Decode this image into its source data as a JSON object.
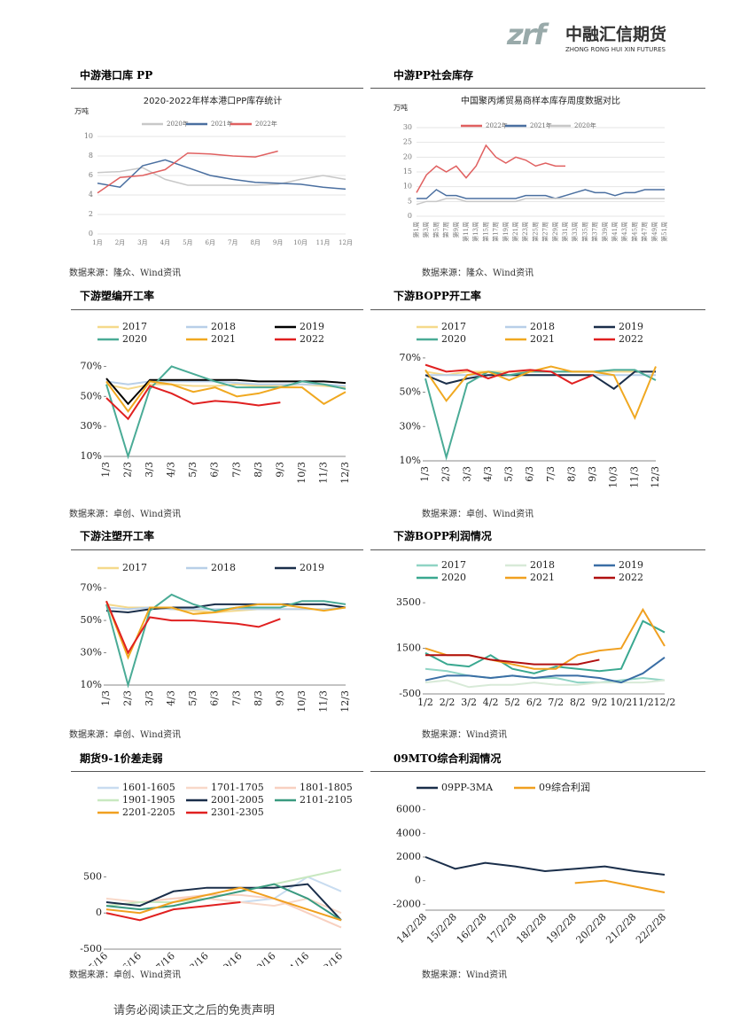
{
  "header": {
    "logo_mark": "zrf",
    "company": "中融汇信期货",
    "company_en": "ZHONG RONG HUI XIN FUTURES"
  },
  "footer": "请务必阅读正文之后的免责声明",
  "chart_data": [
    {
      "type": "line",
      "section": "中游港口库 PP",
      "source": "数据来源：隆众、Wind资讯",
      "title": "2020-2022年样本港口PP库存统计",
      "unit": "万吨",
      "grid": true,
      "categories": [
        "1月",
        "2月",
        "3月",
        "4月",
        "5月",
        "6月",
        "7月",
        "8月",
        "9月",
        "10月",
        "11月",
        "12月"
      ],
      "series": [
        {
          "name": "2020年",
          "color": "#c8c8c8",
          "values": [
            6.3,
            6.4,
            6.8,
            5.6,
            5.0,
            5.0,
            5.0,
            5.0,
            5.1,
            5.6,
            6.0,
            5.6
          ]
        },
        {
          "name": "2021年",
          "color": "#4a6fa0",
          "values": [
            5.2,
            4.8,
            7.0,
            7.6,
            6.8,
            6.0,
            5.6,
            5.3,
            5.2,
            5.1,
            4.8,
            4.6
          ]
        },
        {
          "name": "2022年",
          "color": "#e06060",
          "values": [
            4.2,
            5.8,
            6.0,
            6.6,
            8.3,
            8.2,
            8.0,
            7.9,
            8.5,
            null,
            null,
            null
          ]
        }
      ],
      "ylim": [
        0,
        10
      ],
      "yticks": [
        0,
        2,
        4,
        6,
        8,
        10
      ]
    },
    {
      "type": "line",
      "section": "中游PP社会库存",
      "source": "数据来源：隆众、Wind资讯",
      "title": "中国聚丙烯贸易商样本库存周度数据对比",
      "unit": "万吨",
      "grid": true,
      "categories": [
        "第1周",
        "第3周",
        "第5周",
        "第7周",
        "第9周",
        "第11周",
        "第13周",
        "第15周",
        "第17周",
        "第19周",
        "第21周",
        "第23周",
        "第25周",
        "第27周",
        "第29周",
        "第31周",
        "第33周",
        "第35周",
        "第37周",
        "第39周",
        "第41周",
        "第43周",
        "第45周",
        "第47周",
        "第49周",
        "第51周"
      ],
      "series": [
        {
          "name": "2022年",
          "color": "#e06060",
          "values": [
            8,
            14,
            17,
            15,
            17,
            13,
            17,
            24,
            20,
            18,
            20,
            19,
            17,
            18,
            17,
            17,
            null,
            null,
            null,
            null,
            null,
            null,
            null,
            null,
            null,
            null
          ]
        },
        {
          "name": "2021年",
          "color": "#4a6fa0",
          "values": [
            6,
            6,
            9,
            7,
            7,
            6,
            6,
            6,
            6,
            6,
            6,
            7,
            7,
            7,
            6,
            7,
            8,
            9,
            8,
            8,
            7,
            8,
            8,
            9,
            9,
            9
          ]
        },
        {
          "name": "2020年",
          "color": "#c8c8c8",
          "values": [
            4,
            5,
            5,
            6,
            6,
            5,
            5,
            5,
            5,
            5,
            5,
            6,
            6,
            6,
            6,
            6,
            6,
            6,
            6,
            6,
            6,
            6,
            6,
            6,
            6,
            6
          ]
        }
      ],
      "ylim": [
        0,
        30
      ],
      "yticks": [
        0,
        5,
        10,
        15,
        20,
        25,
        30
      ]
    },
    {
      "type": "line",
      "section": "下游塑编开工率",
      "source": "数据来源：卓创、Wind资讯",
      "grid": false,
      "categories": [
        "1/3",
        "2/3",
        "3/3",
        "4/3",
        "5/3",
        "6/3",
        "7/3",
        "8/3",
        "9/3",
        "10/3",
        "11/3",
        "12/3"
      ],
      "series": [
        {
          "name": "2017",
          "color": "#f5d98b",
          "values": [
            58,
            55,
            58,
            58,
            57,
            57,
            58,
            57,
            57,
            58,
            57,
            56
          ]
        },
        {
          "name": "2018",
          "color": "#b8cfe8",
          "values": [
            60,
            58,
            60,
            60,
            60,
            60,
            59,
            58,
            58,
            58,
            58,
            57
          ]
        },
        {
          "name": "2019",
          "color": "#000000",
          "values": [
            62,
            45,
            61,
            61,
            61,
            61,
            61,
            60,
            60,
            60,
            60,
            59
          ]
        },
        {
          "name": "2020",
          "color": "#4aab96",
          "values": [
            58,
            10,
            55,
            70,
            65,
            60,
            56,
            56,
            56,
            60,
            58,
            55
          ]
        },
        {
          "name": "2021",
          "color": "#f0a820",
          "values": [
            60,
            40,
            60,
            58,
            53,
            56,
            50,
            52,
            56,
            56,
            45,
            53
          ]
        },
        {
          "name": "2022",
          "color": "#e02020",
          "values": [
            49,
            35,
            57,
            52,
            45,
            47,
            46,
            44,
            46,
            null,
            null,
            null
          ]
        }
      ],
      "ylim": [
        10,
        75
      ],
      "yticks": [
        {
          "value": 10,
          "label": "10%"
        },
        {
          "value": 30,
          "label": "30%"
        },
        {
          "value": 50,
          "label": "50%"
        },
        {
          "value": 70,
          "label": "70%"
        }
      ]
    },
    {
      "type": "line",
      "section": "下游BOPP开工率",
      "source": "数据来源：卓创、Wind资讯",
      "grid": false,
      "categories": [
        "1/3",
        "2/3",
        "3/3",
        "4/3",
        "5/3",
        "6/3",
        "7/3",
        "8/3",
        "9/3",
        "10/3",
        "11/3",
        "12/3"
      ],
      "series": [
        {
          "name": "2017",
          "color": "#f5d98b",
          "values": [
            62,
            60,
            62,
            62,
            62,
            62,
            62,
            62,
            62,
            62,
            62,
            62
          ]
        },
        {
          "name": "2018",
          "color": "#b8cfe8",
          "values": [
            60,
            60,
            60,
            60,
            60,
            60,
            60,
            60,
            60,
            60,
            60,
            60
          ]
        },
        {
          "name": "2019",
          "color": "#1a2e4a",
          "values": [
            60,
            55,
            58,
            60,
            60,
            60,
            60,
            60,
            60,
            52,
            62,
            62
          ]
        },
        {
          "name": "2020",
          "color": "#4aab96",
          "values": [
            58,
            12,
            55,
            62,
            60,
            62,
            62,
            62,
            62,
            63,
            63,
            57
          ]
        },
        {
          "name": "2021",
          "color": "#f0a820",
          "values": [
            63,
            45,
            60,
            62,
            57,
            62,
            65,
            62,
            62,
            60,
            35,
            65
          ]
        },
        {
          "name": "2022",
          "color": "#e02020",
          "values": [
            66,
            62,
            63,
            58,
            62,
            63,
            62,
            55,
            60,
            null,
            null,
            null
          ]
        }
      ],
      "ylim": [
        10,
        72
      ],
      "yticks": [
        {
          "value": 10,
          "label": "10%"
        },
        {
          "value": 30,
          "label": "30%"
        },
        {
          "value": 50,
          "label": "50%"
        },
        {
          "value": 70,
          "label": "70%"
        }
      ]
    },
    {
      "type": "line",
      "section": "下游注塑开工率",
      "source": "数据来源：卓创、Wind资讯",
      "grid": false,
      "categories": [
        "1/3",
        "2/3",
        "3/3",
        "4/3",
        "5/3",
        "6/3",
        "7/3",
        "8/3",
        "9/3",
        "10/3",
        "11/3",
        "12/3"
      ],
      "series": [
        {
          "name": "2017",
          "color": "#f5d98b",
          "values": [
            60,
            58,
            58,
            57,
            56,
            55,
            56,
            57,
            57,
            57,
            57,
            58
          ]
        },
        {
          "name": "2018",
          "color": "#b8cfe8",
          "values": [
            58,
            57,
            58,
            57,
            57,
            57,
            57,
            57,
            57,
            57,
            57,
            58
          ]
        },
        {
          "name": "2019",
          "color": "#1a2e4a",
          "values": [
            56,
            55,
            57,
            58,
            58,
            60,
            60,
            60,
            60,
            60,
            60,
            58
          ]
        },
        {
          "color": "#4aab96",
          "values": [
            60,
            10,
            56,
            66,
            60,
            56,
            58,
            58,
            58,
            62,
            62,
            60
          ]
        },
        {
          "color": "#f0a820",
          "values": [
            62,
            27,
            58,
            58,
            54,
            55,
            58,
            60,
            60,
            58,
            56,
            58
          ]
        },
        {
          "color": "#e02020",
          "values": [
            62,
            30,
            52,
            50,
            50,
            49,
            48,
            46,
            51,
            null,
            null,
            null
          ]
        }
      ],
      "ylim": [
        10,
        72
      ],
      "yticks": [
        {
          "value": 10,
          "label": "10%"
        },
        {
          "value": 30,
          "label": "30%"
        },
        {
          "value": 50,
          "label": "50%"
        },
        {
          "value": 70,
          "label": "70%"
        }
      ]
    },
    {
      "type": "line",
      "section": "下游BOPP利润情况",
      "source": "数据来源：Wind资讯",
      "grid": false,
      "categories": [
        "1/2",
        "2/2",
        "3/2",
        "4/2",
        "5/2",
        "6/2",
        "7/2",
        "8/2",
        "9/2",
        "10/2",
        "11/2",
        "12/2"
      ],
      "series": [
        {
          "name": "2017",
          "color": "#8fd4c4",
          "values": [
            600,
            500,
            300,
            200,
            300,
            200,
            200,
            0,
            0,
            100,
            200,
            100
          ]
        },
        {
          "name": "2018",
          "color": "#d8ead8",
          "values": [
            0,
            100,
            -200,
            -100,
            -100,
            0,
            -100,
            -100,
            0,
            0,
            0,
            100
          ]
        },
        {
          "name": "2019",
          "color": "#3a6ea5",
          "values": [
            100,
            300,
            300,
            200,
            300,
            200,
            300,
            300,
            200,
            0,
            400,
            1100
          ]
        },
        {
          "name": "2020",
          "color": "#3aa890",
          "values": [
            1300,
            800,
            700,
            1200,
            600,
            400,
            700,
            600,
            500,
            600,
            2700,
            2200
          ]
        },
        {
          "name": "2021",
          "color": "#f0a020",
          "values": [
            1500,
            1200,
            1200,
            1000,
            800,
            600,
            600,
            1200,
            1400,
            1500,
            3200,
            1600
          ]
        },
        {
          "name": "2022",
          "color": "#b01010",
          "values": [
            1200,
            1200,
            1200,
            1000,
            900,
            800,
            800,
            800,
            1000,
            null,
            null,
            null
          ]
        }
      ],
      "ylim": [
        -500,
        3700
      ],
      "yticks": [
        -500,
        1500,
        3500
      ]
    },
    {
      "type": "line",
      "section": "期货9-1价差走弱",
      "source": "数据来源：卓创、Wind资讯",
      "grid": false,
      "categories": [
        "5/16",
        "6/16",
        "7/16",
        "8/16",
        "9/16",
        "10/16",
        "11/16",
        "12/16"
      ],
      "series": [
        {
          "name": "1601-1605",
          "color": "#c8dcf0",
          "values": [
            100,
            50,
            100,
            200,
            150,
            200,
            500,
            300
          ]
        },
        {
          "name": "1701-1705",
          "color": "#f8d8c8",
          "values": [
            200,
            150,
            200,
            200,
            150,
            100,
            200,
            0
          ]
        },
        {
          "name": "1801-1805",
          "color": "#f8d0c0",
          "values": [
            100,
            150,
            200,
            250,
            250,
            200,
            0,
            -200
          ]
        },
        {
          "name": "1901-1905",
          "color": "#c8e8c0",
          "values": [
            100,
            150,
            150,
            200,
            300,
            400,
            500,
            600
          ]
        },
        {
          "name": "2001-2005",
          "color": "#1a2e4a",
          "values": [
            150,
            100,
            300,
            350,
            350,
            350,
            400,
            -100
          ]
        },
        {
          "name": "2101-2105",
          "color": "#3a9a80",
          "values": [
            100,
            50,
            100,
            200,
            300,
            400,
            200,
            -100
          ]
        },
        {
          "name": "2201-2205",
          "color": "#f0a020",
          "values": [
            50,
            0,
            150,
            250,
            350,
            200,
            50,
            -100
          ]
        },
        {
          "name": "2301-2305",
          "color": "#e02020",
          "values": [
            0,
            -100,
            50,
            100,
            150,
            null,
            null,
            null
          ]
        }
      ],
      "ylim": [
        -500,
        800
      ],
      "yticks": [
        -500,
        0,
        500
      ]
    },
    {
      "type": "line",
      "section": "09MTO综合利润情况",
      "source": "数据来源：Wind资讯",
      "grid": false,
      "categories": [
        "14/2/28",
        "15/2/28",
        "16/2/28",
        "17/2/28",
        "18/2/28",
        "19/2/28",
        "20/2/28",
        "21/2/28",
        "22/2/28"
      ],
      "series": [
        {
          "name": "09PP-3MA",
          "color": "#1a2e4a",
          "values": [
            2000,
            1000,
            1500,
            1200,
            800,
            1000,
            1200,
            800,
            500
          ]
        },
        {
          "name": "09综合利润",
          "color": "#f0a020",
          "values": [
            null,
            null,
            null,
            null,
            null,
            -200,
            0,
            -500,
            -1000
          ]
        }
      ],
      "ylim": [
        -2500,
        6500
      ],
      "yticks": [
        -2000,
        0,
        2000,
        4000,
        6000
      ]
    }
  ]
}
